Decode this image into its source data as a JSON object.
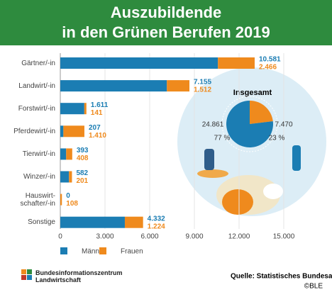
{
  "chart_data": [
    {
      "type": "stacked-hbar",
      "title": "Auszubildende\nin den Grünen Berufen 2019",
      "categories": [
        "Gärtner/-in",
        "Landwirt/-in",
        "Forstwirt/-in",
        "Pferdewirt/-in",
        "Tierwirt/-in",
        "Winzer/-in",
        "Hauswirt-\nschafter/-in",
        "Sonstige"
      ],
      "series": [
        {
          "name": "Männer",
          "color": "#1b7db3",
          "values": [
            10581,
            7155,
            1611,
            207,
            393,
            582,
            0,
            4332
          ],
          "value_labels": [
            "10.581",
            "7.155",
            "1.611",
            "207",
            "393",
            "582",
            "0",
            "4.332"
          ]
        },
        {
          "name": "Frauen",
          "color": "#ef8a1d",
          "values": [
            2466,
            1512,
            141,
            1410,
            408,
            201,
            108,
            1224
          ],
          "value_labels": [
            "2.466",
            "1.512",
            "141",
            "1.410",
            "408",
            "201",
            "108",
            "1.224"
          ]
        }
      ],
      "xlim": [
        0,
        15000
      ],
      "xticks": [
        0,
        {
          "value": 3000,
          "label": "3.000"
        },
        {
          "value": 6000,
          "label": "6.000"
        },
        {
          "value": 9000,
          "label": "9.000"
        },
        {
          "value": 12000,
          "label": "12.000"
        },
        {
          "value": 15000,
          "label": "15.000"
        }
      ],
      "grid": true
    },
    {
      "type": "pie",
      "title": "Insgesamt",
      "categories": [
        "Männer",
        "Frauen"
      ],
      "values": [
        24861,
        7470
      ],
      "value_labels": [
        "24.861",
        "7.470"
      ],
      "percent_labels": [
        "77 %",
        "23 %"
      ],
      "colors": [
        "#1b7db3",
        "#ef8a1d"
      ]
    }
  ],
  "footer": {
    "logo": "Bundesinformationszentrum\nLandwirtschaft",
    "source": "Quelle: Statistisches Bundesamt",
    "copyright": "©BLE"
  }
}
